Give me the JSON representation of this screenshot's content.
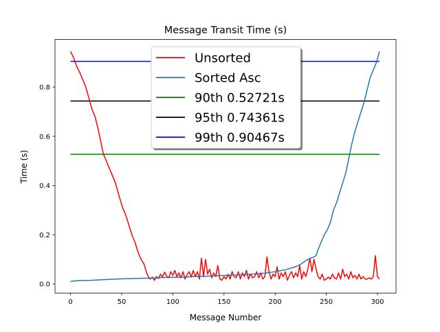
{
  "chart_data": {
    "type": "line",
    "title": "Message Transit Time (s)",
    "xlabel": "Message Number",
    "ylabel": "Time (s)",
    "xlim": [
      -15.15,
      318.15
    ],
    "ylim": [
      -0.0368,
      0.9935
    ],
    "xticks": [
      0,
      50,
      100,
      150,
      200,
      250,
      300
    ],
    "yticks": [
      0.0,
      0.2,
      0.4,
      0.6,
      0.8
    ],
    "ytick_labels": [
      "0.0",
      "0.2",
      "0.4",
      "0.6",
      "0.8"
    ],
    "grid": false,
    "legend_position": "upper center",
    "series": [
      {
        "name": "Unsorted",
        "color": "#ff0000",
        "points": [
          [
            0,
            0.945
          ],
          [
            3,
            0.92
          ],
          [
            6,
            0.885
          ],
          [
            9,
            0.86
          ],
          [
            12,
            0.83
          ],
          [
            15,
            0.8
          ],
          [
            17,
            0.77
          ],
          [
            19,
            0.74
          ],
          [
            21,
            0.71
          ],
          [
            24,
            0.68
          ],
          [
            27,
            0.63
          ],
          [
            30,
            0.57
          ],
          [
            32,
            0.53
          ],
          [
            35,
            0.5
          ],
          [
            38,
            0.47
          ],
          [
            41,
            0.44
          ],
          [
            44,
            0.41
          ],
          [
            46,
            0.38
          ],
          [
            48,
            0.35
          ],
          [
            51,
            0.31
          ],
          [
            54,
            0.28
          ],
          [
            57,
            0.24
          ],
          [
            60,
            0.2
          ],
          [
            63,
            0.17
          ],
          [
            66,
            0.13
          ],
          [
            69,
            0.1
          ],
          [
            72,
            0.08
          ],
          [
            74,
            0.05
          ],
          [
            76,
            0.03
          ],
          [
            78,
            0.02
          ],
          [
            80,
            0.028
          ],
          [
            82,
            0.015
          ],
          [
            84,
            0.03
          ],
          [
            86,
            0.022
          ],
          [
            88,
            0.04
          ],
          [
            90,
            0.028
          ],
          [
            92,
            0.048
          ],
          [
            94,
            0.032
          ],
          [
            96,
            0.025
          ],
          [
            98,
            0.05
          ],
          [
            100,
            0.035
          ],
          [
            102,
            0.055
          ],
          [
            104,
            0.03
          ],
          [
            106,
            0.045
          ],
          [
            108,
            0.025
          ],
          [
            110,
            0.05
          ],
          [
            112,
            0.02
          ],
          [
            114,
            0.038
          ],
          [
            116,
            0.05
          ],
          [
            118,
            0.028
          ],
          [
            120,
            0.055
          ],
          [
            122,
            0.03
          ],
          [
            124,
            0.05
          ],
          [
            126,
            0.02
          ],
          [
            128,
            0.105
          ],
          [
            130,
            0.03
          ],
          [
            132,
            0.1
          ],
          [
            134,
            0.04
          ],
          [
            136,
            0.06
          ],
          [
            138,
            0.025
          ],
          [
            140,
            0.045
          ],
          [
            142,
            0.03
          ],
          [
            144,
            0.075
          ],
          [
            146,
            0.02
          ],
          [
            148,
            0.015
          ],
          [
            150,
            0.03
          ],
          [
            152,
            0.02
          ],
          [
            154,
            0.04
          ],
          [
            156,
            0.02
          ],
          [
            158,
            0.05
          ],
          [
            160,
            0.03
          ],
          [
            162,
            0.025
          ],
          [
            164,
            0.05
          ],
          [
            166,
            0.02
          ],
          [
            168,
            0.045
          ],
          [
            170,
            0.03
          ],
          [
            172,
            0.055
          ],
          [
            174,
            0.02
          ],
          [
            176,
            0.04
          ],
          [
            178,
            0.025
          ],
          [
            180,
            0.03
          ],
          [
            182,
            0.05
          ],
          [
            184,
            0.025
          ],
          [
            186,
            0.045
          ],
          [
            188,
            0.02
          ],
          [
            190,
            0.03
          ],
          [
            192,
            0.11
          ],
          [
            194,
            0.05
          ],
          [
            196,
            0.02
          ],
          [
            198,
            0.04
          ],
          [
            200,
            0.03
          ],
          [
            202,
            0.07
          ],
          [
            204,
            0.02
          ],
          [
            206,
            0.045
          ],
          [
            208,
            0.03
          ],
          [
            210,
            0.05
          ],
          [
            212,
            0.015
          ],
          [
            214,
            0.035
          ],
          [
            216,
            0.05
          ],
          [
            218,
            0.025
          ],
          [
            220,
            0.045
          ],
          [
            222,
            0.03
          ],
          [
            224,
            0.075
          ],
          [
            226,
            0.02
          ],
          [
            228,
            0.05
          ],
          [
            230,
            0.03
          ],
          [
            232,
            0.06
          ],
          [
            234,
            0.105
          ],
          [
            236,
            0.05
          ],
          [
            238,
            0.1
          ],
          [
            240,
            0.06
          ],
          [
            242,
            0.03
          ],
          [
            244,
            0.02
          ],
          [
            246,
            0.04
          ],
          [
            248,
            0.015
          ],
          [
            250,
            0.02
          ],
          [
            252,
            0.028
          ],
          [
            254,
            0.02
          ],
          [
            256,
            0.04
          ],
          [
            258,
            0.025
          ],
          [
            260,
            0.02
          ],
          [
            262,
            0.045
          ],
          [
            264,
            0.02
          ],
          [
            266,
            0.06
          ],
          [
            268,
            0.03
          ],
          [
            270,
            0.04
          ],
          [
            272,
            0.02
          ],
          [
            274,
            0.05
          ],
          [
            276,
            0.025
          ],
          [
            278,
            0.035
          ],
          [
            280,
            0.02
          ],
          [
            282,
            0.04
          ],
          [
            284,
            0.02
          ],
          [
            286,
            0.03
          ],
          [
            288,
            0.02
          ],
          [
            290,
            0.02
          ],
          [
            292,
            0.025
          ],
          [
            294,
            0.02
          ],
          [
            296,
            0.03
          ],
          [
            298,
            0.115
          ],
          [
            300,
            0.03
          ],
          [
            302,
            0.02
          ]
        ]
      },
      {
        "name": "Sorted Asc",
        "color": "#1f77b4",
        "points": [
          [
            0,
            0.01
          ],
          [
            5,
            0.013
          ],
          [
            10,
            0.014
          ],
          [
            20,
            0.015
          ],
          [
            30,
            0.017
          ],
          [
            40,
            0.019
          ],
          [
            50,
            0.021
          ],
          [
            60,
            0.022
          ],
          [
            70,
            0.023
          ],
          [
            80,
            0.024
          ],
          [
            90,
            0.026
          ],
          [
            100,
            0.027
          ],
          [
            110,
            0.028
          ],
          [
            120,
            0.03
          ],
          [
            130,
            0.031
          ],
          [
            140,
            0.033
          ],
          [
            150,
            0.035
          ],
          [
            160,
            0.036
          ],
          [
            170,
            0.038
          ],
          [
            180,
            0.041
          ],
          [
            190,
            0.044
          ],
          [
            200,
            0.05
          ],
          [
            205,
            0.054
          ],
          [
            210,
            0.058
          ],
          [
            215,
            0.064
          ],
          [
            220,
            0.07
          ],
          [
            225,
            0.08
          ],
          [
            230,
            0.095
          ],
          [
            235,
            0.105
          ],
          [
            238,
            0.11
          ],
          [
            240,
            0.115
          ],
          [
            242,
            0.14
          ],
          [
            245,
            0.17
          ],
          [
            248,
            0.2
          ],
          [
            251,
            0.22
          ],
          [
            254,
            0.25
          ],
          [
            257,
            0.3
          ],
          [
            260,
            0.33
          ],
          [
            263,
            0.37
          ],
          [
            266,
            0.41
          ],
          [
            269,
            0.45
          ],
          [
            272,
            0.51
          ],
          [
            275,
            0.57
          ],
          [
            278,
            0.62
          ],
          [
            281,
            0.66
          ],
          [
            284,
            0.7
          ],
          [
            287,
            0.74
          ],
          [
            290,
            0.79
          ],
          [
            293,
            0.84
          ],
          [
            296,
            0.87
          ],
          [
            299,
            0.9
          ],
          [
            302,
            0.945
          ]
        ]
      }
    ],
    "reference_lines": [
      {
        "label": "90th 0.52721s",
        "value": 0.52721,
        "color": "#008000"
      },
      {
        "label": "95th 0.74361s",
        "value": 0.74361,
        "color": "#000000"
      },
      {
        "label": "99th 0.90467s",
        "value": 0.90467,
        "color": "#0000ff"
      }
    ],
    "reference_span": [
      0,
      302
    ]
  }
}
